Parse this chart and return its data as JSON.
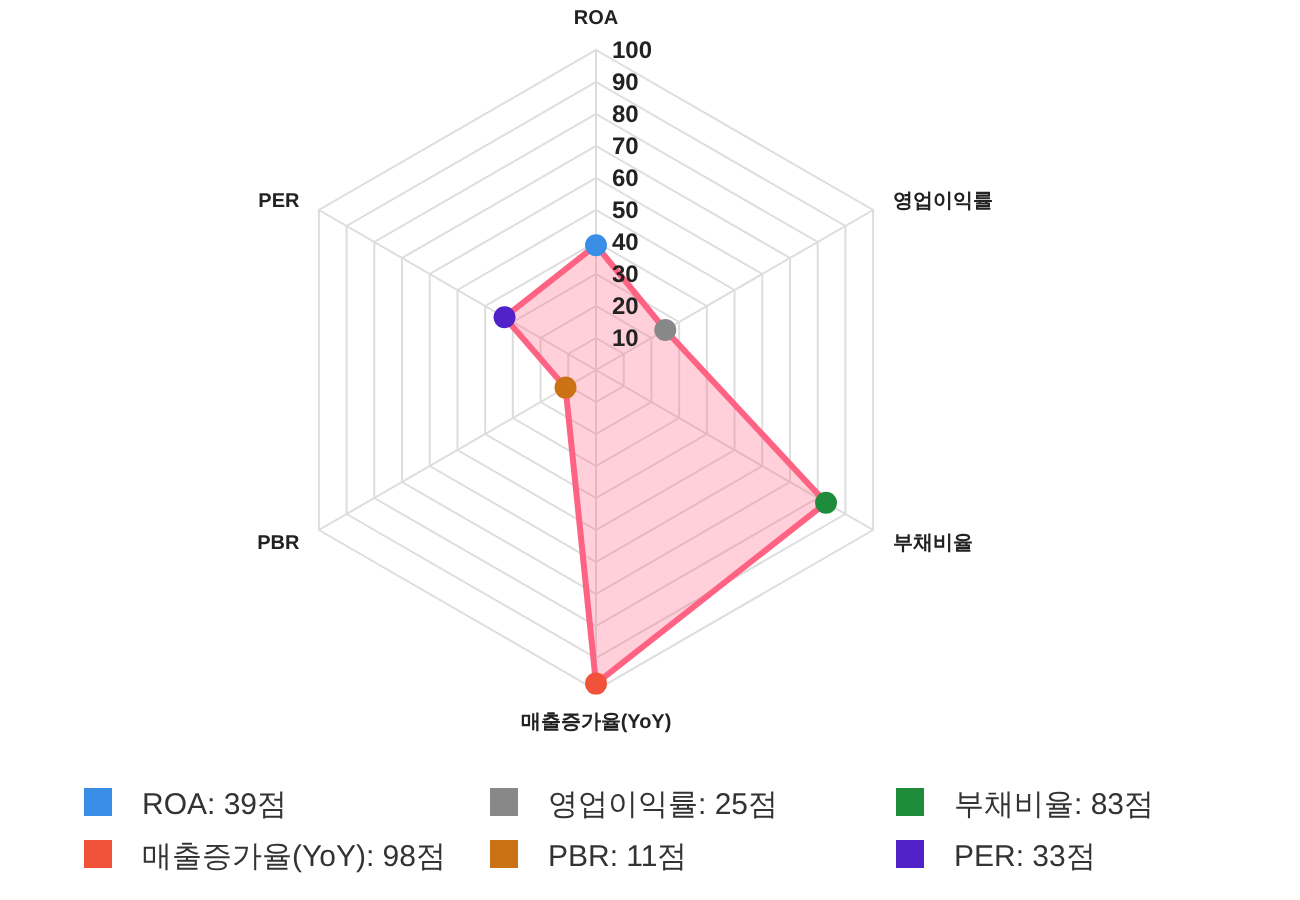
{
  "chart_data": {
    "type": "radar",
    "categories": [
      "ROA",
      "영업이익률",
      "부채비율",
      "매출증가율(YoY)",
      "PBR",
      "PER"
    ],
    "series": [
      {
        "color": "#ff6384",
        "values": [
          39,
          25,
          83,
          98,
          11,
          33
        ],
        "colors": [
          "#3a8ee6",
          "#888888",
          "#1e8c3a",
          "#f0523a",
          "#cc7216",
          "#5022c8"
        ]
      }
    ],
    "annotations": [
      "ROA: 39점",
      "영업이익률: 25점",
      "부채비율: 83점",
      "매출증가율(YoY): 98점",
      "PBR: 11점",
      "PER: 33점"
    ],
    "ylim": [
      0,
      100
    ],
    "yticks": [
      10,
      20,
      30,
      40,
      50,
      60,
      70,
      80,
      90,
      100
    ],
    "grid": true,
    "marker": "circle"
  }
}
